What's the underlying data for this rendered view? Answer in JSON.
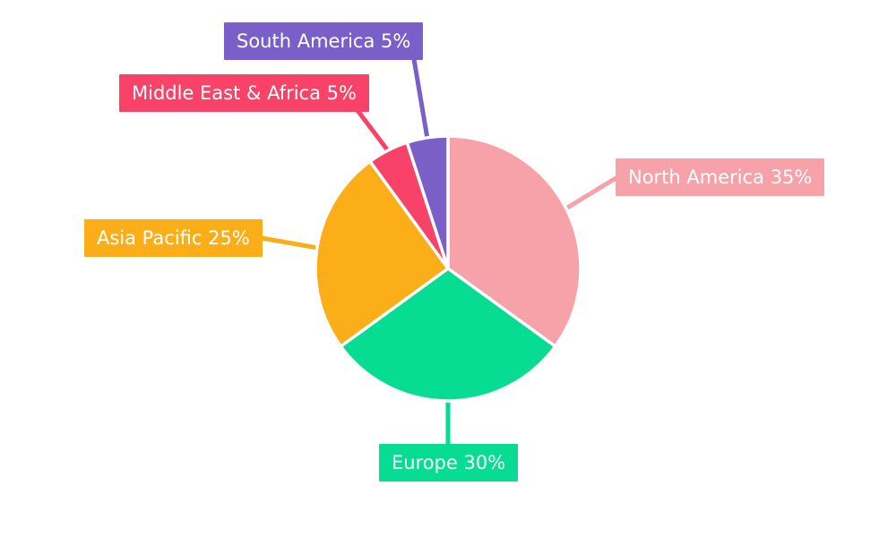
{
  "chart_data": {
    "type": "pie",
    "title": "",
    "legend_position": "none",
    "background": "#FFFFFF",
    "start_angle_deg": 0,
    "direction": "clockwise",
    "slices": [
      {
        "label": "North America",
        "value": 35,
        "display": "North America 35%",
        "color": "#F7A1A8"
      },
      {
        "label": "Europe",
        "value": 30,
        "display": "Europe 30%",
        "color": "#06DC92"
      },
      {
        "label": "Asia Pacific",
        "value": 25,
        "display": "Asia Pacific 25%",
        "color": "#FBAE18"
      },
      {
        "label": "Middle East & Africa",
        "value": 5,
        "display": "Middle East & Africa 5%",
        "color": "#F94267"
      },
      {
        "label": "South America",
        "value": 5,
        "display": "South America 5%",
        "color": "#7A5FC8"
      }
    ],
    "separator_color": "#FFFFFF",
    "label_text_color": "#FFFFFF"
  }
}
